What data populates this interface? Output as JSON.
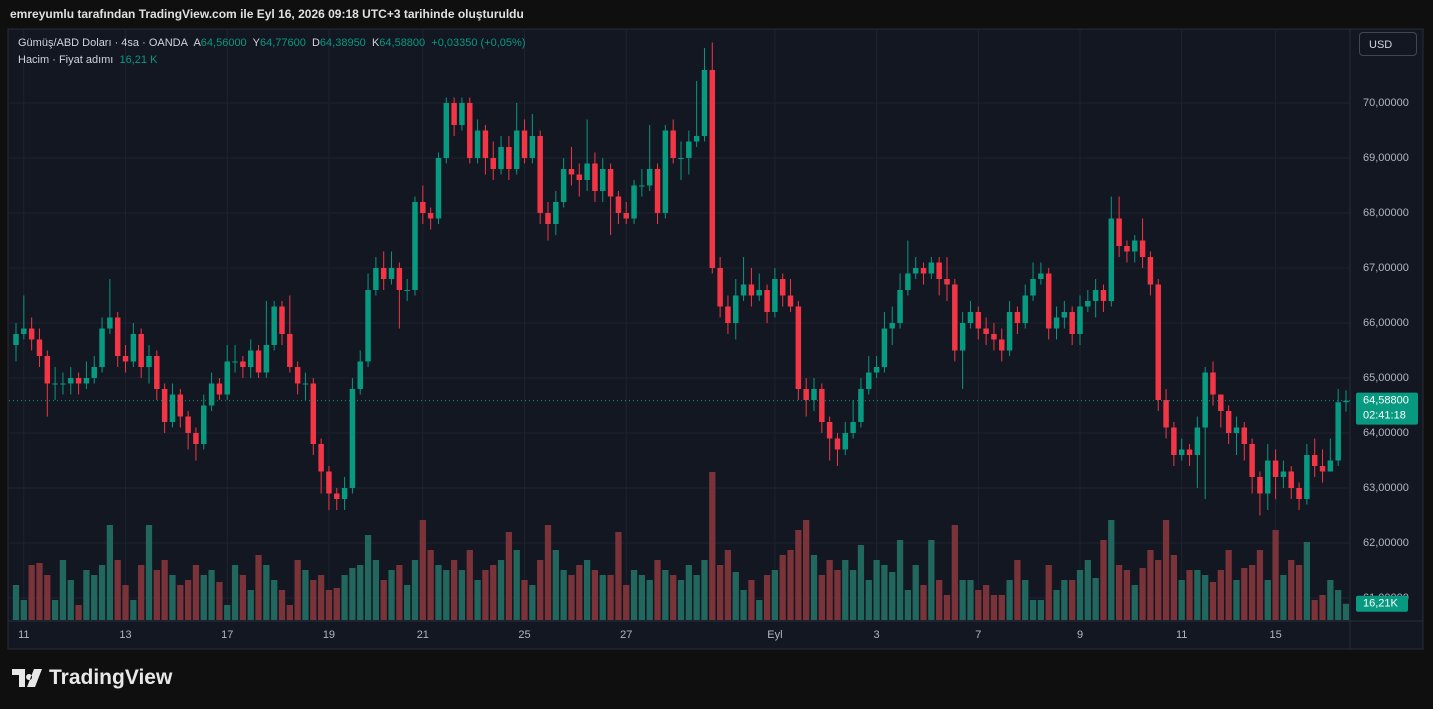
{
  "header": {
    "credit": "emreyumlu tarafından TradingView.com ile Eyl 16, 2026 09:18 UTC+3 tarihinde oluşturuldu",
    "currency": "USD"
  },
  "footer": {
    "brand": "TradingView"
  },
  "chart_data": {
    "type": "candlestick",
    "legend": {
      "symbol": "Gümüş/ABD Doları · 4sa · OANDA",
      "open_key": "A",
      "open_label": "64,56000",
      "high_key": "Y",
      "high_label": "64,77600",
      "low_key": "D",
      "low_label": "64,38950",
      "close_key": "K",
      "change": "+0,03350 (+0,05%)",
      "volume_title": "Hacim · Fiyat adımı",
      "volume_label": "16,21 K"
    },
    "last_price_label": "64,58800",
    "countdown": "02:41:18",
    "volume_last_label": "16,21K",
    "up_color": "#089981",
    "down_color": "#f23645",
    "volume_up_color": "#22675e",
    "volume_down_color": "#7a3339",
    "ylim": [
      60.6,
      71.327
    ],
    "yticks": [
      {
        "value": 61,
        "label": "61,00000"
      },
      {
        "value": 62,
        "label": "62,00000"
      },
      {
        "value": 63,
        "label": "63,00000"
      },
      {
        "value": 64,
        "label": "64,00000"
      },
      {
        "value": 65,
        "label": "65,00000"
      },
      {
        "value": 66,
        "label": "66,00000"
      },
      {
        "value": 67,
        "label": "67,00000"
      },
      {
        "value": 68,
        "label": "68,00000"
      },
      {
        "value": 69,
        "label": "69,00000"
      },
      {
        "value": 70,
        "label": "70,00000"
      }
    ],
    "grid": true,
    "volume_lim": [
      0,
      150
    ],
    "categories": [
      null,
      "11",
      null,
      null,
      null,
      null,
      null,
      null,
      null,
      null,
      null,
      null,
      null,
      null,
      "13",
      null,
      null,
      null,
      null,
      null,
      null,
      null,
      null,
      null,
      null,
      null,
      null,
      "17",
      null,
      null,
      null,
      null,
      null,
      null,
      null,
      null,
      null,
      null,
      null,
      null,
      "19",
      null,
      null,
      null,
      null,
      null,
      null,
      null,
      null,
      null,
      null,
      null,
      "21",
      null,
      null,
      null,
      null,
      null,
      null,
      null,
      null,
      null,
      null,
      null,
      null,
      "25",
      null,
      null,
      null,
      null,
      null,
      null,
      null,
      null,
      null,
      null,
      null,
      null,
      "27",
      null,
      null,
      null,
      null,
      null,
      null,
      null,
      null,
      null,
      null,
      null,
      null,
      null,
      null,
      null,
      null,
      null,
      null,
      "Eyl",
      null,
      null,
      null,
      null,
      null,
      null,
      null,
      null,
      null,
      null,
      null,
      null,
      "3",
      null,
      null,
      null,
      null,
      null,
      null,
      null,
      null,
      null,
      null,
      null,
      null,
      "7",
      null,
      null,
      null,
      null,
      null,
      null,
      null,
      null,
      null,
      null,
      null,
      null,
      "9",
      null,
      null,
      null,
      null,
      null,
      null,
      null,
      null,
      null,
      null,
      null,
      null,
      "11",
      null,
      null,
      null,
      null,
      null,
      null,
      null,
      null,
      null,
      null,
      null,
      "15",
      null,
      null,
      null,
      null,
      null,
      null,
      null,
      null,
      null
    ],
    "open": [
      65.6,
      65.8,
      65.9,
      65.7,
      65.4,
      64.9,
      64.9,
      64.9,
      65.0,
      64.9,
      65.0,
      65.2,
      65.9,
      66.1,
      65.4,
      65.3,
      65.8,
      65.2,
      65.4,
      64.8,
      64.2,
      64.7,
      64.3,
      64.0,
      63.8,
      64.5,
      64.9,
      64.7,
      65.3,
      65.3,
      65.2,
      65.5,
      65.1,
      65.6,
      66.3,
      65.8,
      65.2,
      64.9,
      64.9,
      63.8,
      63.3,
      62.9,
      62.8,
      63.0,
      64.8,
      65.3,
      66.6,
      67.0,
      66.8,
      67.0,
      66.6,
      66.6,
      68.2,
      68.0,
      67.9,
      69.0,
      70.0,
      69.6,
      70.0,
      69.0,
      69.5,
      69.0,
      68.8,
      69.2,
      68.8,
      69.5,
      69.0,
      69.4,
      68.0,
      67.8,
      68.2,
      68.8,
      68.7,
      68.6,
      68.9,
      68.4,
      68.8,
      68.3,
      68.0,
      67.9,
      68.5,
      68.5,
      68.8,
      68.0,
      69.5,
      69.0,
      69.0,
      69.3,
      69.4,
      70.6,
      67.0,
      66.3,
      66.0,
      66.5,
      66.7,
      66.5,
      66.6,
      66.2,
      66.8,
      66.5,
      66.3,
      64.8,
      64.6,
      64.8,
      64.2,
      63.9,
      63.7,
      64.0,
      64.2,
      64.8,
      65.1,
      65.2,
      65.9,
      66.0,
      66.6,
      66.9,
      67.0,
      66.9,
      67.1,
      66.8,
      66.7,
      65.5,
      66.0,
      66.2,
      65.9,
      65.8,
      65.7,
      65.5,
      66.2,
      66.0,
      66.5,
      66.8,
      66.9,
      65.9,
      66.1,
      66.2,
      65.8,
      66.3,
      66.4,
      66.6,
      66.4,
      67.9,
      67.4,
      67.3,
      67.5,
      67.2,
      66.7,
      64.6,
      64.1,
      63.6,
      63.7,
      63.6,
      64.1,
      65.1,
      64.7,
      64.4,
      64.0,
      64.1,
      63.8,
      63.2,
      62.9,
      63.5,
      63.2,
      63.3,
      63.0,
      62.8,
      63.6,
      63.4,
      63.3,
      63.5,
      64.56
    ],
    "high": [
      66.0,
      66.5,
      66.1,
      65.9,
      65.5,
      65.2,
      65.1,
      65.2,
      65.1,
      65.3,
      65.4,
      66.1,
      66.8,
      66.2,
      65.6,
      66.0,
      65.9,
      65.6,
      65.5,
      64.9,
      64.9,
      64.8,
      64.4,
      64.1,
      64.7,
      65.1,
      65.0,
      65.6,
      65.6,
      65.4,
      65.7,
      65.6,
      66.4,
      66.4,
      66.4,
      66.5,
      65.3,
      65.1,
      65.0,
      63.9,
      63.4,
      63.0,
      63.2,
      65.0,
      65.5,
      66.9,
      67.2,
      67.3,
      67.3,
      67.1,
      66.8,
      68.3,
      68.5,
      68.1,
      69.1,
      70.1,
      70.1,
      70.1,
      70.1,
      69.7,
      69.6,
      69.3,
      69.4,
      69.4,
      70.0,
      69.7,
      69.8,
      69.5,
      68.2,
      68.4,
      69.0,
      69.2,
      68.9,
      69.7,
      69.1,
      69.0,
      68.9,
      68.4,
      68.2,
      68.6,
      68.8,
      69.6,
      68.9,
      69.6,
      69.7,
      69.3,
      69.5,
      70.4,
      71.0,
      71.1,
      67.2,
      66.5,
      66.8,
      67.2,
      67.0,
      66.9,
      66.7,
      67.0,
      66.9,
      66.8,
      66.4,
      65.0,
      65.0,
      64.9,
      64.3,
      64.0,
      64.2,
      64.6,
      65.0,
      65.4,
      65.4,
      66.2,
      66.3,
      66.9,
      67.5,
      67.2,
      67.1,
      67.2,
      67.2,
      67.2,
      66.8,
      66.2,
      66.4,
      66.3,
      66.1,
      66.0,
      65.9,
      66.4,
      66.3,
      66.7,
      67.1,
      67.1,
      67.0,
      66.3,
      66.4,
      66.3,
      66.5,
      66.6,
      66.8,
      66.7,
      68.3,
      68.3,
      67.5,
      67.6,
      67.9,
      67.3,
      66.8,
      64.8,
      64.2,
      63.9,
      63.8,
      64.3,
      65.2,
      65.3,
      64.7,
      64.5,
      64.3,
      64.2,
      63.9,
      63.3,
      63.8,
      63.7,
      63.5,
      63.4,
      63.1,
      63.8,
      63.9,
      63.7,
      63.9,
      64.8,
      64.776
    ],
    "low": [
      65.3,
      65.7,
      65.5,
      65.2,
      64.3,
      64.6,
      64.7,
      64.7,
      64.7,
      64.8,
      64.9,
      65.1,
      65.8,
      65.2,
      65.1,
      65.2,
      65.0,
      64.9,
      64.6,
      64.0,
      64.1,
      64.1,
      63.7,
      63.5,
      63.7,
      64.4,
      64.6,
      64.6,
      65.1,
      65.0,
      65.0,
      65.0,
      65.0,
      65.5,
      65.6,
      65.1,
      64.7,
      64.6,
      63.6,
      62.9,
      62.6,
      62.6,
      62.6,
      62.9,
      64.7,
      65.2,
      66.5,
      66.6,
      66.7,
      65.9,
      66.4,
      66.5,
      67.8,
      67.7,
      67.8,
      68.9,
      69.4,
      69.5,
      68.9,
      68.9,
      68.7,
      68.6,
      68.7,
      68.6,
      68.7,
      68.9,
      68.9,
      67.8,
      67.5,
      67.6,
      68.1,
      68.5,
      68.3,
      68.4,
      68.2,
      68.2,
      67.6,
      67.8,
      67.8,
      67.8,
      68.3,
      68.4,
      67.8,
      67.9,
      68.9,
      68.6,
      68.7,
      69.2,
      69.3,
      66.9,
      66.1,
      65.8,
      65.7,
      66.4,
      66.3,
      66.4,
      66.0,
      66.1,
      66.3,
      66.2,
      64.6,
      64.3,
      64.4,
      64.0,
      63.5,
      63.4,
      63.6,
      63.9,
      64.1,
      64.7,
      65.0,
      65.1,
      65.6,
      65.9,
      66.5,
      66.8,
      66.7,
      66.8,
      66.5,
      66.4,
      65.3,
      64.8,
      65.9,
      65.7,
      65.6,
      65.5,
      65.3,
      65.4,
      65.8,
      65.9,
      66.4,
      66.7,
      65.7,
      65.7,
      65.9,
      65.6,
      65.6,
      66.2,
      66.1,
      66.2,
      66.3,
      67.2,
      67.1,
      67.1,
      67.0,
      66.5,
      64.4,
      63.9,
      63.4,
      63.5,
      63.4,
      63.0,
      62.8,
      64.5,
      64.1,
      63.8,
      63.6,
      63.5,
      62.9,
      62.5,
      62.6,
      62.8,
      63.0,
      62.8,
      62.6,
      62.7,
      63.2,
      63.1,
      63.3,
      63.4,
      64.3895
    ],
    "close": [
      65.8,
      65.9,
      65.7,
      65.4,
      64.9,
      64.9,
      64.9,
      65.0,
      64.9,
      65.0,
      65.2,
      65.9,
      66.1,
      65.4,
      65.3,
      65.8,
      65.2,
      65.4,
      64.8,
      64.2,
      64.7,
      64.3,
      64.0,
      63.8,
      64.5,
      64.9,
      64.7,
      65.3,
      65.3,
      65.2,
      65.5,
      65.1,
      65.6,
      66.3,
      65.8,
      65.2,
      64.9,
      64.9,
      63.8,
      63.3,
      62.9,
      62.8,
      63.0,
      64.8,
      65.3,
      66.6,
      67.0,
      66.8,
      67.0,
      66.6,
      66.6,
      68.2,
      68.0,
      67.9,
      69.0,
      70.0,
      69.6,
      70.0,
      69.0,
      69.5,
      69.0,
      68.8,
      69.2,
      68.8,
      69.5,
      69.0,
      69.4,
      68.0,
      67.8,
      68.2,
      68.8,
      68.7,
      68.6,
      68.9,
      68.4,
      68.8,
      68.3,
      68.0,
      67.9,
      68.5,
      68.5,
      68.8,
      68.0,
      69.5,
      69.0,
      69.0,
      69.3,
      69.4,
      70.6,
      67.0,
      66.3,
      66.0,
      66.5,
      66.7,
      66.5,
      66.6,
      66.2,
      66.8,
      66.5,
      66.3,
      64.8,
      64.6,
      64.8,
      64.2,
      63.9,
      63.7,
      64.0,
      64.2,
      64.8,
      65.1,
      65.2,
      65.9,
      66.0,
      66.6,
      66.9,
      67.0,
      66.9,
      67.1,
      66.8,
      66.7,
      65.5,
      66.0,
      66.2,
      65.9,
      65.8,
      65.7,
      65.5,
      66.2,
      66.0,
      66.5,
      66.8,
      66.9,
      65.9,
      66.1,
      66.2,
      65.8,
      66.3,
      66.4,
      66.6,
      66.4,
      67.9,
      67.4,
      67.3,
      67.5,
      67.2,
      66.7,
      64.6,
      64.1,
      63.6,
      63.7,
      63.6,
      64.1,
      65.1,
      64.7,
      64.4,
      64.0,
      64.1,
      63.8,
      63.2,
      62.9,
      63.5,
      63.2,
      63.3,
      63.0,
      62.8,
      63.6,
      63.4,
      63.3,
      63.5,
      64.56,
      64.588
    ],
    "volume": [
      35,
      20,
      55,
      57,
      45,
      20,
      60,
      40,
      15,
      50,
      45,
      55,
      95,
      60,
      35,
      20,
      55,
      95,
      50,
      60,
      45,
      35,
      40,
      55,
      45,
      50,
      38,
      15,
      55,
      45,
      30,
      65,
      55,
      40,
      30,
      15,
      60,
      50,
      40,
      45,
      30,
      32,
      45,
      52,
      55,
      85,
      60,
      40,
      50,
      55,
      35,
      60,
      100,
      70,
      55,
      50,
      60,
      50,
      70,
      40,
      50,
      55,
      60,
      88,
      70,
      40,
      35,
      60,
      95,
      70,
      50,
      45,
      55,
      60,
      50,
      45,
      45,
      88,
      35,
      50,
      45,
      40,
      60,
      50,
      45,
      40,
      55,
      45,
      60,
      148,
      55,
      70,
      48,
      30,
      40,
      20,
      45,
      50,
      65,
      70,
      90,
      100,
      65,
      45,
      60,
      50,
      60,
      50,
      75,
      40,
      60,
      55,
      48,
      80,
      30,
      55,
      35,
      80,
      40,
      25,
      95,
      40,
      40,
      30,
      35,
      25,
      25,
      40,
      60,
      40,
      20,
      20,
      55,
      30,
      40,
      40,
      50,
      60,
      42,
      80,
      100,
      55,
      50,
      35,
      52,
      70,
      60,
      100,
      65,
      40,
      50,
      50,
      45,
      38,
      50,
      70,
      40,
      52,
      55,
      70,
      40,
      90,
      45,
      60,
      55,
      78,
      20,
      25,
      40,
      30,
      16.21
    ]
  }
}
